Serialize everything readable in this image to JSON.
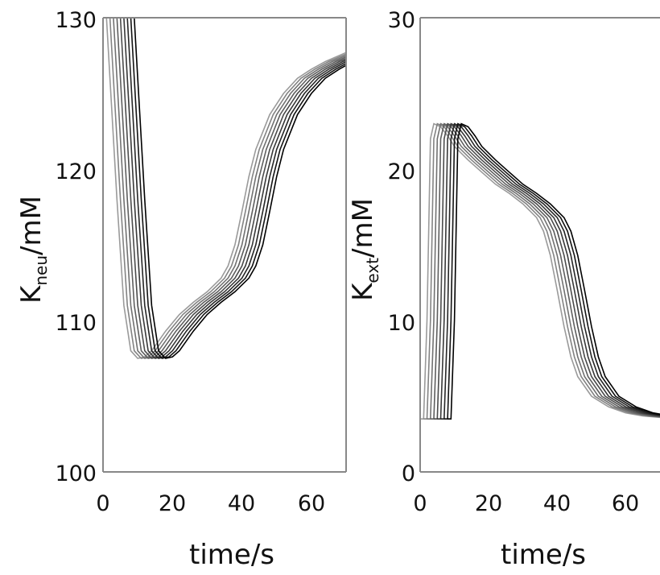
{
  "chart_data": [
    {
      "type": "line",
      "title": "",
      "xlabel": "time/s",
      "ylabel": {
        "main": "K",
        "sub": "neu",
        "unit": "/mM"
      },
      "xlim": [
        0,
        70
      ],
      "ylim": [
        100,
        130
      ],
      "xticks": [
        "0",
        "20",
        "40",
        "60"
      ],
      "yticks": [
        "100",
        "110",
        "120",
        "130"
      ],
      "grid": false,
      "series_template": {
        "x": [
          0,
          1,
          2,
          4,
          6,
          8,
          10,
          12,
          14,
          18,
          22,
          26,
          30,
          34,
          36,
          38,
          40,
          42,
          44,
          48,
          52,
          56,
          60,
          64,
          68,
          70
        ],
        "values": [
          130,
          130,
          126,
          118,
          111,
          108,
          107.5,
          107.6,
          108,
          109.3,
          110.4,
          111.2,
          111.9,
          112.8,
          113.6,
          115,
          117.2,
          119.5,
          121.3,
          123.6,
          125,
          126,
          126.6,
          127.1,
          127.5,
          127.7
        ]
      },
      "series_shifts_s": [
        0,
        1,
        2,
        3,
        4,
        5,
        6,
        7,
        8
      ],
      "shift_after_s": 34,
      "series_color": "#000000"
    },
    {
      "type": "line",
      "title": "",
      "xlabel": "time/s",
      "ylabel": {
        "main": "K",
        "sub": "ext",
        "unit": "/mM"
      },
      "xlim": [
        0,
        70
      ],
      "ylim": [
        0,
        30
      ],
      "xticks": [
        "0",
        "20",
        "40",
        "60"
      ],
      "yticks": [
        "0",
        "10",
        "20",
        "30"
      ],
      "grid": false,
      "series_template": {
        "x": [
          0,
          1,
          2,
          3,
          4,
          6,
          8,
          10,
          14,
          18,
          22,
          26,
          30,
          34,
          36,
          38,
          40,
          42,
          44,
          46,
          50,
          55,
          60,
          65,
          70
        ],
        "values": [
          3.5,
          3.5,
          10,
          22,
          23,
          22.8,
          22.2,
          21.5,
          20.6,
          19.8,
          19,
          18.4,
          17.7,
          16.8,
          15.9,
          14.3,
          12,
          9.6,
          7.6,
          6.3,
          5,
          4.3,
          3.9,
          3.7,
          3.6
        ]
      },
      "series_shifts_s": [
        0,
        1,
        2,
        3,
        4,
        5,
        6,
        7,
        8
      ],
      "shift_after_s": 34,
      "series_color": "#000000"
    }
  ]
}
